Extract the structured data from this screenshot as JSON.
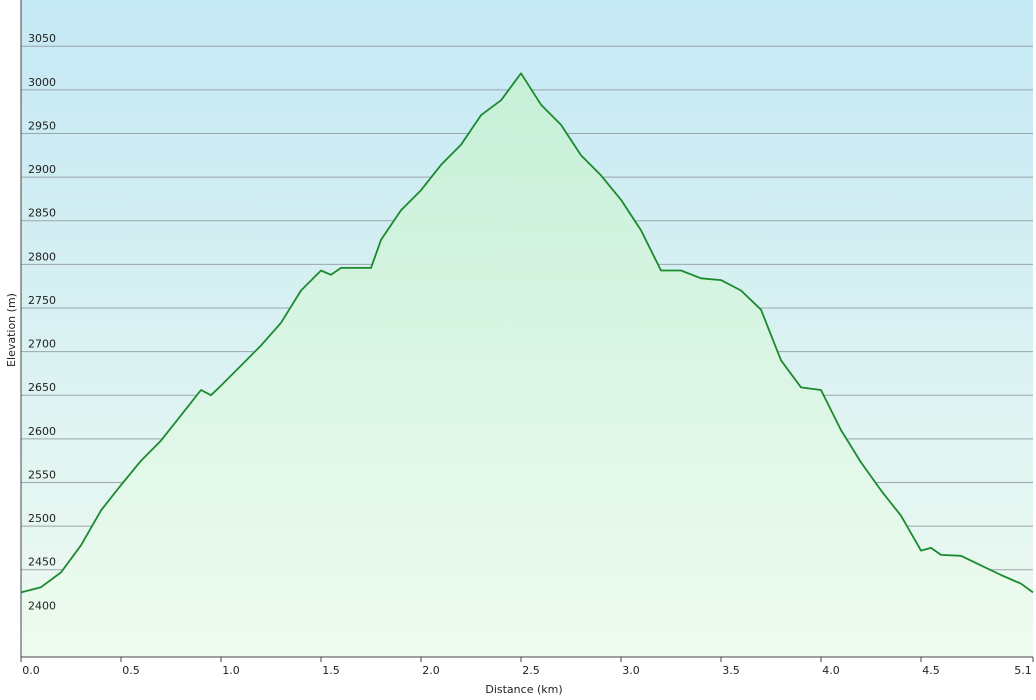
{
  "chart_data": {
    "type": "area",
    "x_label": "Distance  (km)",
    "y_label": "Elevation (m)",
    "x": [
      0.0,
      0.1,
      0.2,
      0.3,
      0.4,
      0.5,
      0.6,
      0.7,
      0.8,
      0.9,
      0.95,
      1.0,
      1.1,
      1.2,
      1.3,
      1.4,
      1.5,
      1.55,
      1.6,
      1.65,
      1.75,
      1.8,
      1.9,
      2.0,
      2.1,
      2.2,
      2.3,
      2.4,
      2.5,
      2.6,
      2.7,
      2.8,
      2.9,
      3.0,
      3.1,
      3.2,
      3.3,
      3.4,
      3.5,
      3.6,
      3.7,
      3.8,
      3.9,
      4.0,
      4.1,
      4.2,
      4.3,
      4.4,
      4.5,
      4.55,
      4.6,
      4.7,
      4.8,
      4.9,
      5.0,
      5.06
    ],
    "values": [
      2424,
      2430,
      2447,
      2478,
      2518,
      2547,
      2575,
      2598,
      2627,
      2656,
      2650,
      2661,
      2684,
      2707,
      2733,
      2770,
      2793,
      2788,
      2796,
      2796,
      2796,
      2828,
      2862,
      2885,
      2914,
      2937,
      2971,
      2988,
      3019,
      2983,
      2960,
      2925,
      2902,
      2874,
      2839,
      2793,
      2793,
      2784,
      2782,
      2770,
      2748,
      2690,
      2659,
      2656,
      2610,
      2573,
      2541,
      2512,
      2472,
      2475,
      2467,
      2466,
      2455,
      2444,
      2434,
      2424
    ],
    "color": "#1b8a2e",
    "xlim": [
      0,
      5.06
    ],
    "xticks": [
      {
        "value": 0,
        "label": "0.0"
      },
      0.5,
      {
        "value": 1,
        "label": "1.0"
      },
      1.5,
      {
        "value": 2,
        "label": "2.0"
      },
      2.5,
      {
        "value": 3,
        "label": "3.0"
      },
      3.5,
      {
        "value": 4,
        "label": "4.0"
      },
      4.5,
      {
        "value": 5.06,
        "label": "5.1"
      }
    ],
    "ylim": [
      2350,
      3103
    ],
    "yticks": [
      2400,
      2450,
      2500,
      2550,
      2600,
      2650,
      2700,
      2750,
      2800,
      2850,
      2900,
      2950,
      3000,
      3050
    ],
    "grid": true
  }
}
